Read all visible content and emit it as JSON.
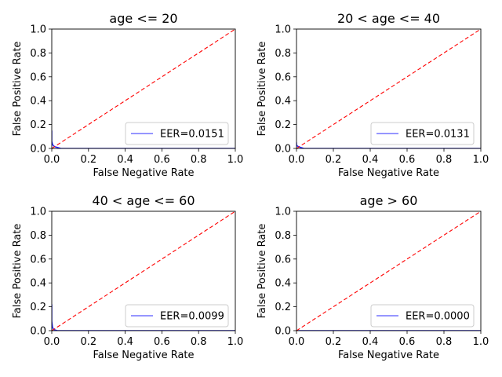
{
  "chart_data": [
    {
      "type": "line",
      "title": "age <= 20",
      "xlabel": "False Negative Rate",
      "ylabel": "False Positive Rate",
      "xlim": [
        0,
        1
      ],
      "ylim": [
        0,
        1
      ],
      "xticks": [
        "0.0",
        "0.2",
        "0.4",
        "0.6",
        "0.8",
        "1.0"
      ],
      "yticks": [
        "0.0",
        "0.2",
        "0.4",
        "0.6",
        "0.8",
        "1.0"
      ],
      "grid": false,
      "legend_position": "lower-right",
      "series": [
        {
          "name": "EER=0.0151",
          "color": "#0000ff",
          "style": "solid",
          "x": [
            0.0,
            0.0,
            0.005,
            0.015,
            0.05,
            1.0
          ],
          "y": [
            0.15,
            0.06,
            0.03,
            0.015,
            0.0,
            0.0
          ]
        },
        {
          "name": "",
          "color": "#ff0000",
          "style": "dashed",
          "x": [
            0,
            1
          ],
          "y": [
            0,
            1
          ]
        }
      ]
    },
    {
      "type": "line",
      "title": "20 < age <= 40",
      "xlabel": "False Negative Rate",
      "ylabel": "False Positive Rate",
      "xlim": [
        0,
        1
      ],
      "ylim": [
        0,
        1
      ],
      "xticks": [
        "0.0",
        "0.2",
        "0.4",
        "0.6",
        "0.8",
        "1.0"
      ],
      "yticks": [
        "0.0",
        "0.2",
        "0.4",
        "0.6",
        "0.8",
        "1.0"
      ],
      "grid": false,
      "legend_position": "lower-right",
      "series": [
        {
          "name": "EER=0.0131",
          "color": "#0000ff",
          "style": "solid",
          "x": [
            0.0,
            0.0,
            0.005,
            0.013,
            0.04,
            1.0
          ],
          "y": [
            0.05,
            0.03,
            0.02,
            0.013,
            0.0,
            0.0
          ]
        },
        {
          "name": "",
          "color": "#ff0000",
          "style": "dashed",
          "x": [
            0,
            1
          ],
          "y": [
            0,
            1
          ]
        }
      ]
    },
    {
      "type": "line",
      "title": "40 < age <= 60",
      "xlabel": "False Negative Rate",
      "ylabel": "False Positive Rate",
      "xlim": [
        0,
        1
      ],
      "ylim": [
        0,
        1
      ],
      "xticks": [
        "0.0",
        "0.2",
        "0.4",
        "0.6",
        "0.8",
        "1.0"
      ],
      "yticks": [
        "0.0",
        "0.2",
        "0.4",
        "0.6",
        "0.8",
        "1.0"
      ],
      "grid": false,
      "legend_position": "lower-right",
      "series": [
        {
          "name": "EER=0.0099",
          "color": "#0000ff",
          "style": "solid",
          "x": [
            0.0,
            0.0,
            0.004,
            0.01,
            0.03,
            1.0
          ],
          "y": [
            0.22,
            0.08,
            0.03,
            0.01,
            0.0,
            0.0
          ]
        },
        {
          "name": "",
          "color": "#ff0000",
          "style": "dashed",
          "x": [
            0,
            1
          ],
          "y": [
            0,
            1
          ]
        }
      ]
    },
    {
      "type": "line",
      "title": "age > 60",
      "xlabel": "False Negative Rate",
      "ylabel": "False Positive Rate",
      "xlim": [
        0,
        1
      ],
      "ylim": [
        0,
        1
      ],
      "xticks": [
        "0.0",
        "0.2",
        "0.4",
        "0.6",
        "0.8",
        "1.0"
      ],
      "yticks": [
        "0.0",
        "0.2",
        "0.4",
        "0.6",
        "0.8",
        "1.0"
      ],
      "grid": false,
      "legend_position": "lower-right",
      "series": [
        {
          "name": "EER=0.0000",
          "color": "#0000ff",
          "style": "solid",
          "x": [
            0.0,
            1.0
          ],
          "y": [
            0.0,
            0.0
          ]
        },
        {
          "name": "",
          "color": "#ff0000",
          "style": "dashed",
          "x": [
            0,
            1
          ],
          "y": [
            0,
            1
          ]
        }
      ]
    }
  ]
}
